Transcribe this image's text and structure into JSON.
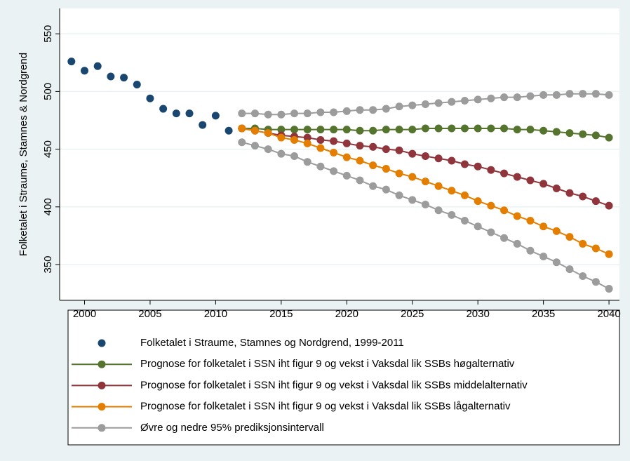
{
  "chart_data": {
    "type": "line",
    "ylabel": "Folketalet i Straume, Stamnes & Nordgrend",
    "xlim": [
      1998.1,
      2040.8
    ],
    "ylim": [
      319,
      572
    ],
    "xticks": [
      2000,
      2005,
      2010,
      2015,
      2020,
      2025,
      2030,
      2035,
      2040
    ],
    "yticks": [
      350,
      400,
      450,
      500,
      550
    ],
    "grid": true,
    "series": [
      {
        "name": "Folketalet i Straume, Stamnes og Nordgrend, 1999-2011",
        "color": "#1a476f",
        "line": false,
        "x": [
          1999,
          2000,
          2001,
          2002,
          2003,
          2004,
          2005,
          2006,
          2007,
          2008,
          2009,
          2010,
          2011
        ],
        "values": [
          526,
          518,
          522,
          513,
          512,
          506,
          494,
          485,
          481,
          481,
          471,
          479,
          466
        ]
      },
      {
        "name": "Prognose for folketalet i SSN iht figur 9 og vekst i Vaksdal lik SSBs høgalternativ",
        "color": "#55752f",
        "line": true,
        "x": [
          2012,
          2013,
          2014,
          2015,
          2016,
          2017,
          2018,
          2019,
          2020,
          2021,
          2022,
          2023,
          2024,
          2025,
          2026,
          2027,
          2028,
          2029,
          2030,
          2031,
          2032,
          2033,
          2034,
          2035,
          2036,
          2037,
          2038,
          2039,
          2040
        ],
        "values": [
          468,
          468,
          467,
          467,
          467,
          467,
          467,
          467,
          467,
          466,
          466,
          467,
          467,
          467,
          468,
          468,
          468,
          468,
          468,
          468,
          468,
          467,
          467,
          466,
          465,
          464,
          463,
          462,
          460
        ]
      },
      {
        "name": "Prognose for folketalet i SSN iht figur 9 og vekst i Vaksdal lik SSBs middelalternativ",
        "color": "#90353b",
        "line": true,
        "x": [
          2012,
          2013,
          2014,
          2015,
          2016,
          2017,
          2018,
          2019,
          2020,
          2021,
          2022,
          2023,
          2024,
          2025,
          2026,
          2027,
          2028,
          2029,
          2030,
          2031,
          2032,
          2033,
          2034,
          2035,
          2036,
          2037,
          2038,
          2039,
          2040
        ],
        "values": [
          468,
          466,
          464,
          462,
          461,
          460,
          458,
          457,
          455,
          453,
          452,
          450,
          449,
          446,
          444,
          442,
          440,
          437,
          435,
          432,
          429,
          426,
          423,
          420,
          416,
          412,
          409,
          405,
          401
        ]
      },
      {
        "name": "Prognose for folketalet i SSN iht figur 9 og vekst i Vaksdal lik SSBs lågalternativ",
        "color": "#e37e00",
        "line": true,
        "x": [
          2012,
          2013,
          2014,
          2015,
          2016,
          2017,
          2018,
          2019,
          2020,
          2021,
          2022,
          2023,
          2024,
          2025,
          2026,
          2027,
          2028,
          2029,
          2030,
          2031,
          2032,
          2033,
          2034,
          2035,
          2036,
          2037,
          2038,
          2039,
          2040
        ],
        "values": [
          468,
          466,
          464,
          460,
          458,
          455,
          451,
          447,
          443,
          440,
          436,
          433,
          429,
          426,
          422,
          418,
          414,
          410,
          405,
          401,
          397,
          392,
          388,
          383,
          379,
          374,
          368,
          364,
          359
        ]
      },
      {
        "name": "Øvre og nedre 95% prediksjonsintervall",
        "color": "#9c9c9c",
        "line": true,
        "x": [
          2012,
          2013,
          2014,
          2015,
          2016,
          2017,
          2018,
          2019,
          2020,
          2021,
          2022,
          2023,
          2024,
          2025,
          2026,
          2027,
          2028,
          2029,
          2030,
          2031,
          2032,
          2033,
          2034,
          2035,
          2036,
          2037,
          2038,
          2039,
          2040
        ],
        "upper": [
          481,
          481,
          480,
          480,
          481,
          481,
          482,
          482,
          483,
          484,
          484,
          485,
          487,
          488,
          489,
          490,
          491,
          492,
          493,
          494,
          495,
          495,
          496,
          497,
          497,
          498,
          498,
          498,
          497
        ],
        "lower": [
          456,
          453,
          450,
          446,
          444,
          439,
          435,
          431,
          427,
          423,
          418,
          415,
          410,
          406,
          402,
          397,
          393,
          388,
          383,
          378,
          373,
          368,
          362,
          357,
          352,
          346,
          340,
          335,
          329
        ]
      }
    ]
  }
}
